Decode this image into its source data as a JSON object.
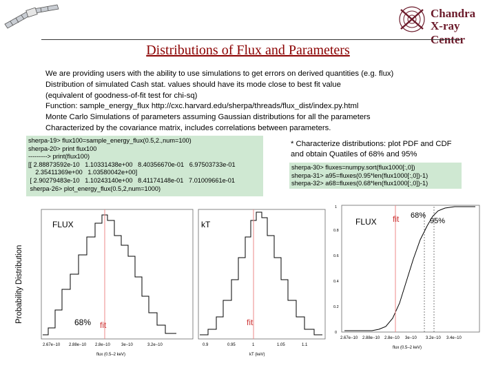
{
  "header": {
    "logo_line1": "Chandra",
    "logo_line2": "X-ray Center",
    "satellite_icon": "satellite-icon",
    "logo_icon": "chandra-logo-icon"
  },
  "title": "Distributions of Flux and Parameters",
  "intro_lines": [
    "We are providing users with the ability to use simulations to get errors on derived quantities (e.g. flux)",
    "Distribution of simulated Cash stat. values should have its mode close to best fit value",
    "(equivalent of goodness-of-fit test for chi-sq)",
    "Function: sample_energy_flux     http://cxc.harvard.edu/sherpa/threads/flux_dist/index.py.html",
    "Monte Carlo Simulations of parameters assuming Gaussian distributions for all the parameters",
    "Characterized by the covariance matrix, includes correlations between parameters."
  ],
  "code_block1": [
    "sherpa-19> flux100=sample_energy_flux(0.5,2.,num=100)",
    "sherpa-20> print flux100",
    "---------> print(flux100)",
    "[[ 2.88873592e-10   1.10331438e+00   8.40356670e-01   6.97503733e-01",
    "    2.35411369e+00   1.03580042e+00]",
    " [ 2.90279483e-10   1.10243140e+00   8.41174148e-01   7.01009661e-01",
    " sherpa-26> plot_energy_flux(0.5,2,num=1000)"
  ],
  "characterize_note": [
    "* Characterize distributions: plot PDF and CDF",
    "and obtain Quatiles of 68% and 95%"
  ],
  "code_block2": [
    "sherpa-30> fluxes=numpy.sort(flux1000[:,0])",
    "sherpa-31> a95=fluxes(0.95*len(flux1000[:,0])-1)",
    "sherpa-32> a68=fluxes(0.68*len(flux1000[:,0])-1)"
  ],
  "y_axis_label": "Probability Distribution",
  "chart_data": [
    {
      "type": "line",
      "title": "FLUX",
      "annotations": [
        "68%",
        "fit"
      ],
      "xlabel": "flux (0.5–2 keV)",
      "x_ticks": [
        "2.67e−10",
        "2.88e−10",
        "2.8e−10",
        "3e−10",
        "3.2e−10"
      ]
    },
    {
      "type": "line",
      "title": "kT",
      "annotations": [
        "fit"
      ],
      "xlabel": "kT (keV)",
      "x_ticks": [
        "0.9",
        "0.95",
        "1",
        "1.05",
        "1.1"
      ]
    },
    {
      "type": "line",
      "title": "FLUX",
      "annotations": [
        "fit",
        "68%",
        "95%"
      ],
      "xlabel": "flux (0.5–2 keV)",
      "x_ticks": [
        "2.67e−10",
        "2.88e−10",
        "2.8e−10",
        "3e−10",
        "3.2e−10",
        "3.4e−10"
      ],
      "y_ticks": [
        "0",
        "0.2",
        "0.4",
        "0.6",
        "0.8",
        "1"
      ]
    }
  ]
}
